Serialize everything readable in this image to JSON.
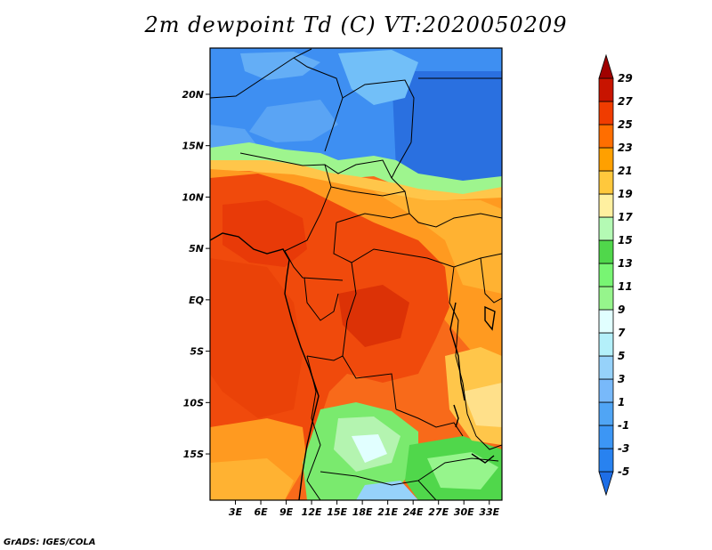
{
  "title": "2m dewpoint Td (C) VT:2020050209",
  "credit": "GrADS: IGES/COLA",
  "map": {
    "lon_range": [
      0,
      34.5
    ],
    "lat_range": [
      -19.5,
      24.5
    ],
    "lat_ticks": [
      {
        "value": 20,
        "label": "20N"
      },
      {
        "value": 15,
        "label": "15N"
      },
      {
        "value": 10,
        "label": "10N"
      },
      {
        "value": 5,
        "label": "5N"
      },
      {
        "value": 0,
        "label": "EQ"
      },
      {
        "value": -5,
        "label": "5S"
      },
      {
        "value": -10,
        "label": "10S"
      },
      {
        "value": -15,
        "label": "15S"
      }
    ],
    "lon_ticks": [
      {
        "value": 3,
        "label": "3E"
      },
      {
        "value": 6,
        "label": "6E"
      },
      {
        "value": 9,
        "label": "9E"
      },
      {
        "value": 12,
        "label": "12E"
      },
      {
        "value": 15,
        "label": "15E"
      },
      {
        "value": 18,
        "label": "18E"
      },
      {
        "value": 21,
        "label": "21E"
      },
      {
        "value": 24,
        "label": "24E"
      },
      {
        "value": 27,
        "label": "27E"
      },
      {
        "value": 30,
        "label": "30E"
      },
      {
        "value": 33,
        "label": "33E"
      }
    ]
  },
  "colorbar": {
    "levels": [
      "-5",
      "-3",
      "-1",
      "1",
      "3",
      "5",
      "7",
      "9",
      "11",
      "13",
      "15",
      "17",
      "19",
      "21",
      "23",
      "25",
      "27",
      "29"
    ],
    "colors": [
      "#1e6ee6",
      "#2882f0",
      "#3c96f5",
      "#50a5f5",
      "#78b9fa",
      "#96d2fa",
      "#b4f0fa",
      "#e1ffff",
      "#96f58c",
      "#78f573",
      "#50d74b",
      "#b4fab4",
      "#fff0a0",
      "#ffc83c",
      "#ffa000",
      "#ff6e00",
      "#f03c00",
      "#c81400",
      "#a00000"
    ]
  }
}
